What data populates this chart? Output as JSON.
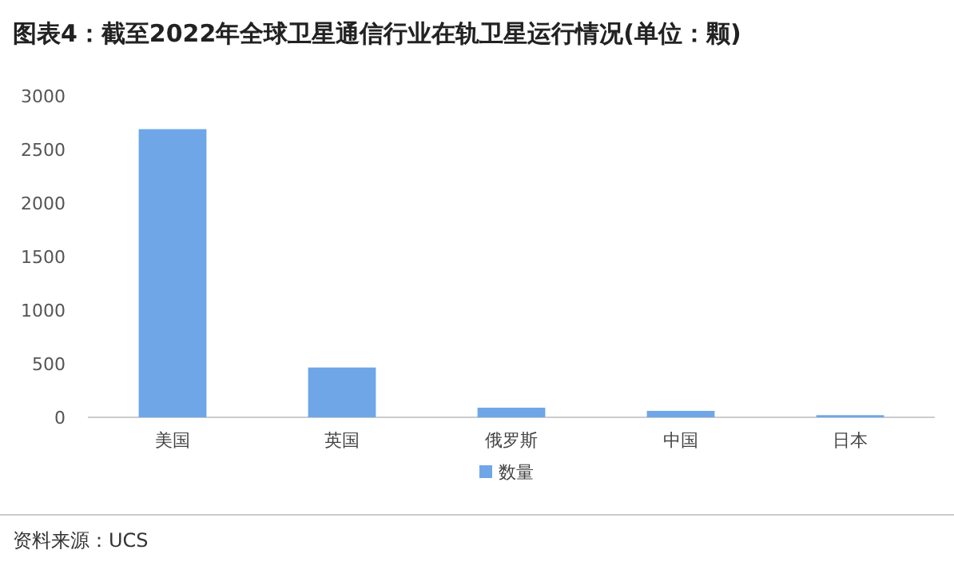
{
  "chart_data": {
    "type": "bar",
    "title": "图表4：截至2022年全球卫星通信行业在轨卫星运行情况(单位：颗)",
    "categories": [
      "美国",
      "英国",
      "俄罗斯",
      "中国",
      "日本"
    ],
    "series": [
      {
        "name": "数量",
        "color": "#6fa6e8",
        "values": [
          2690,
          465,
          90,
          60,
          20
        ]
      }
    ],
    "ylim": [
      0,
      3000
    ],
    "yticks": [
      0,
      500,
      1000,
      1500,
      2000,
      2500,
      3000
    ],
    "grid": false,
    "legend": "bottom",
    "annotations": [
      "资料来源：UCS"
    ]
  }
}
